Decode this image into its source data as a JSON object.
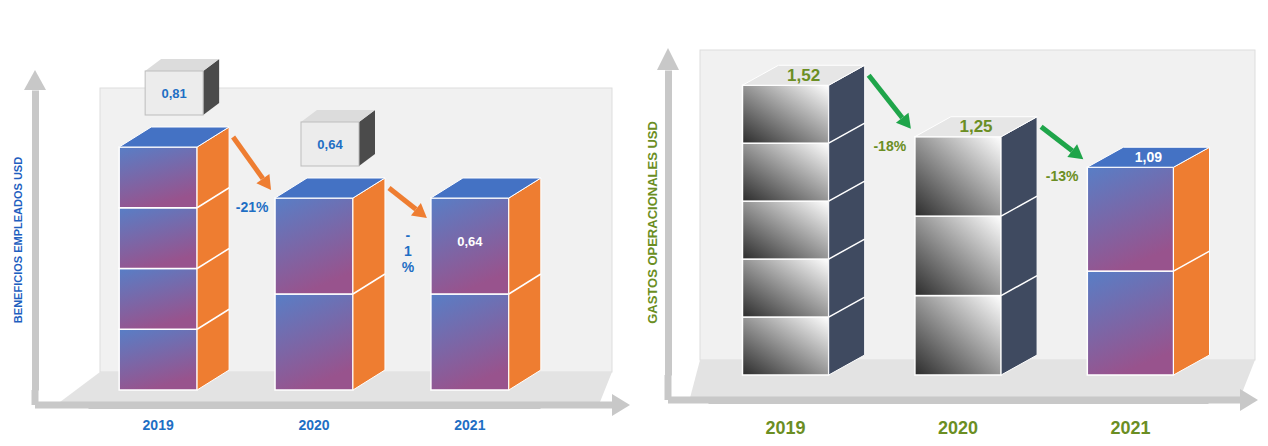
{
  "chart_data": [
    {
      "type": "bar",
      "ylabel": "BENEFICIOS EMPLEADOS USD",
      "categories": [
        "2019",
        "2020",
        "2021"
      ],
      "values": [
        0.81,
        0.64,
        0.64
      ],
      "value_labels": [
        "0,81",
        "0,64",
        "0,64"
      ],
      "data_labels": true,
      "colors": [
        "#7a5cb8",
        "#7a5cb8",
        "#7a5cb8"
      ],
      "ylim": [
        0,
        1
      ],
      "tick_labels": "x",
      "annotations": [
        "-21%",
        "-1%"
      ]
    },
    {
      "type": "bar",
      "ylabel": "GASTOS OPERACIONALES USD",
      "categories": [
        "2019",
        "2020",
        "2021"
      ],
      "values": [
        1.52,
        1.25,
        1.09
      ],
      "value_labels": [
        "1,52",
        "1,25",
        "1,09"
      ],
      "data_labels": true,
      "colors": [
        "#808080",
        "#808080",
        "#7a5cb8"
      ],
      "ylim": [
        0,
        1.6
      ],
      "tick_labels": "x",
      "annotations": [
        "-18%",
        "-13%"
      ]
    }
  ]
}
